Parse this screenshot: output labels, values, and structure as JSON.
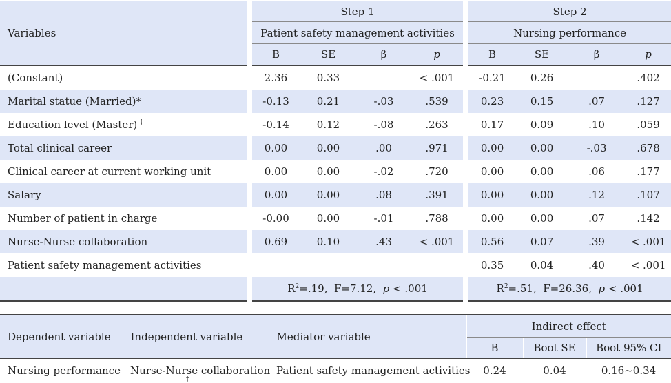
{
  "table1": {
    "variables_label": "Variables",
    "step1": {
      "label": "Step 1",
      "dependent": "Patient safety management activities"
    },
    "step2": {
      "label": "Step 2",
      "dependent": "Nursing performance"
    },
    "columns": [
      "B",
      "SE",
      "β",
      "p"
    ],
    "rows": [
      {
        "name": "(Constant)",
        "s1": [
          "2.36",
          "0.33",
          "",
          "< .001"
        ],
        "s2": [
          "-0.21",
          "0.26",
          "",
          ".402"
        ]
      },
      {
        "name": "Marital statue (Married)*",
        "s1": [
          "-0.13",
          "0.21",
          "-.03",
          ".539"
        ],
        "s2": [
          "0.23",
          "0.15",
          ".07",
          ".127"
        ]
      },
      {
        "name": "Education level (Master)",
        "mark": "†",
        "s1": [
          "-0.14",
          "0.12",
          "-.08",
          ".263"
        ],
        "s2": [
          "0.17",
          "0.09",
          ".10",
          ".059"
        ]
      },
      {
        "name": "Total clinical career",
        "s1": [
          "0.00",
          "0.00",
          ".00",
          ".971"
        ],
        "s2": [
          "0.00",
          "0.00",
          "-.03",
          ".678"
        ]
      },
      {
        "name": "Clinical career at current working unit",
        "s1": [
          "0.00",
          "0.00",
          "-.02",
          ".720"
        ],
        "s2": [
          "0.00",
          "0.00",
          ".06",
          ".177"
        ]
      },
      {
        "name": "Salary",
        "s1": [
          "0.00",
          "0.00",
          ".08",
          ".391"
        ],
        "s2": [
          "0.00",
          "0.00",
          ".12",
          ".107"
        ]
      },
      {
        "name": "Number of patient in charge",
        "s1": [
          "-0.00",
          "0.00",
          "-.01",
          ".788"
        ],
        "s2": [
          "0.00",
          "0.00",
          ".07",
          ".142"
        ]
      },
      {
        "name": "Nurse-Nurse collaboration",
        "s1": [
          "0.69",
          "0.10",
          ".43",
          "< .001"
        ],
        "s2": [
          "0.56",
          "0.07",
          ".39",
          "< .001"
        ]
      },
      {
        "name": "Patient safety management activities",
        "s1": [
          "",
          "",
          "",
          ""
        ],
        "s2": [
          "0.35",
          "0.04",
          ".40",
          "< .001"
        ]
      }
    ],
    "summary": {
      "s1": {
        "r2_prefix": "R",
        "r2_sup": "2",
        "r2_rest": "=.19,  F=7.12,  ",
        "p_label": "p",
        "p_rest": " < .001"
      },
      "s2": {
        "r2_prefix": "R",
        "r2_sup": "2",
        "r2_rest": "=.51,  F=26.36,  ",
        "p_label": "p",
        "p_rest": " < .001"
      }
    }
  },
  "table2": {
    "headers": {
      "dependent": "Dependent variable",
      "independent": "Independent variable",
      "mediator": "Mediator variable",
      "indirect": "Indirect effect",
      "b": "B",
      "boot_se": "Boot SE",
      "boot_ci": "Boot 95% CI"
    },
    "row": {
      "dependent": "Nursing performance",
      "independent": "Nurse-Nurse collaboration",
      "mediator": "Patient safety management activities",
      "b": "0.24",
      "boot_se": "0.04",
      "boot_ci": "0.16~0.34"
    }
  },
  "footnote_mark": "†"
}
